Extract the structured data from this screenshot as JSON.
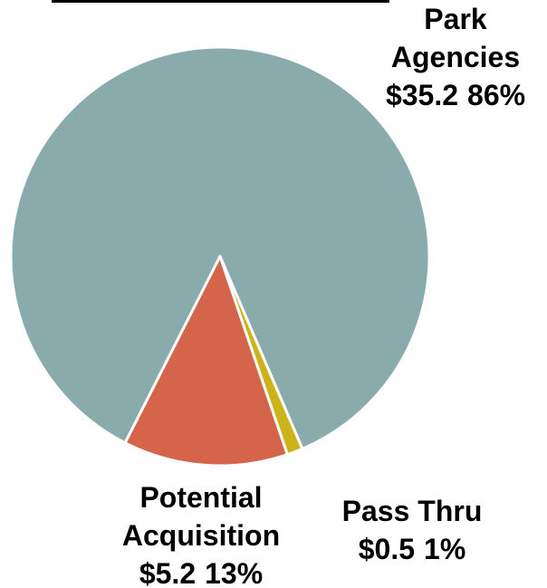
{
  "chart_data": {
    "type": "pie",
    "categories": [
      "Park Agencies",
      "Pass Thru",
      "Potential Acquisition"
    ],
    "values": [
      35.2,
      0.5,
      5.2
    ],
    "value_labels": [
      "$35.2",
      "$0.5",
      "$5.2"
    ],
    "percents": [
      86,
      1,
      13
    ],
    "percent_labels": [
      "86%",
      "1%",
      "13%"
    ],
    "colors": [
      "#8aabab",
      "#ccb31a",
      "#d4644a"
    ]
  }
}
